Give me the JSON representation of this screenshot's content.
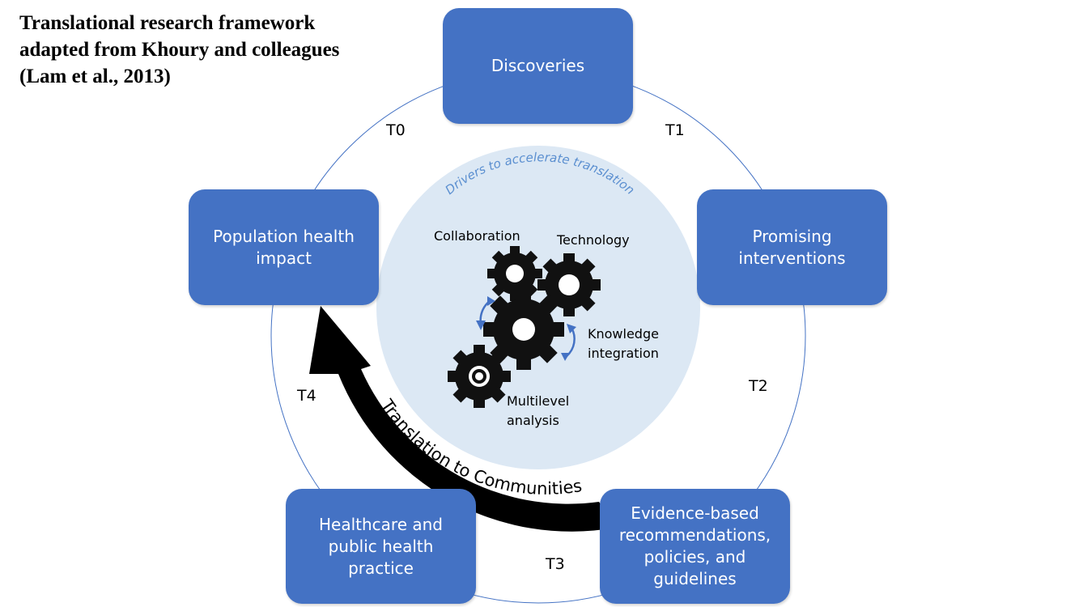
{
  "title_lines": [
    "Translational research framework",
    "adapted from Khoury and colleagues",
    "(Lam et al., 2013)"
  ],
  "boxes": {
    "discoveries": [
      "Discoveries"
    ],
    "promising": [
      "Promising",
      "interventions"
    ],
    "evidence": [
      "Evidence-based",
      "recommendations,",
      "policies, and",
      "guidelines"
    ],
    "practice": [
      "Healthcare and",
      "public health",
      "practice"
    ],
    "population": [
      "Population health",
      "impact"
    ]
  },
  "stages": {
    "t0": "T0",
    "t1": "T1",
    "t2": "T2",
    "t3": "T3",
    "t4": "T4"
  },
  "center": {
    "arc_title": "Drivers to accelerate translation",
    "collaboration": "Collaboration",
    "technology": "Technology",
    "knowledge": [
      "Knowledge",
      "integration"
    ],
    "multilevel": [
      "Multilevel",
      "analysis"
    ]
  },
  "arrow_label": "Translation to Communities",
  "colors": {
    "box": "#4472c4",
    "center_circle": "#dce8f4",
    "ring": "#4472c4",
    "arc_text": "#5b8fd0",
    "arrow": "#000000"
  }
}
